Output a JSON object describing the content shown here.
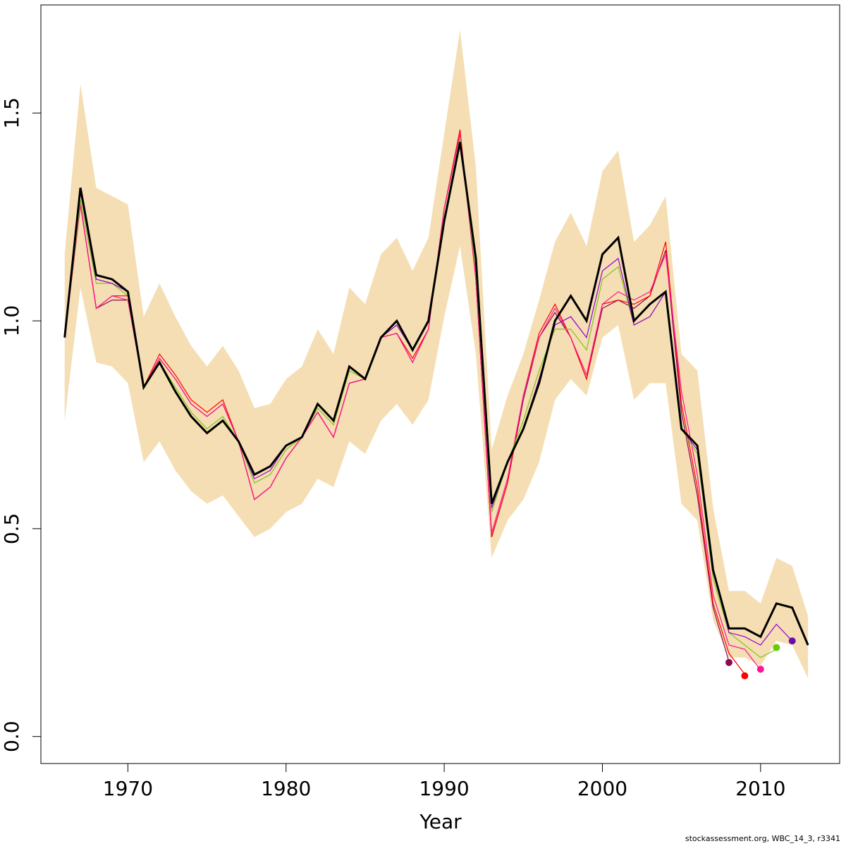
{
  "chart_data": {
    "type": "line",
    "title": "",
    "xlabel": "Year",
    "ylabel": "",
    "xlim": [
      1964.5,
      2015
    ],
    "ylim": [
      -0.065,
      1.76
    ],
    "x_ticks": [
      1970,
      1980,
      1990,
      2000,
      2010
    ],
    "y_ticks": [
      0.0,
      0.5,
      1.0,
      1.5
    ],
    "y_tick_labels": [
      "0.0",
      "0.5",
      "1.0",
      "1.5"
    ],
    "grid": false,
    "legend": "none",
    "colors": {
      "band": "#f5deb3",
      "main": "#000000",
      "retro_2012": "#9400d3",
      "retro_2011": "#7fc31c",
      "retro_2010": "#ff1493",
      "retro_2009": "#ff0000",
      "retro_2008": "#8b0a50"
    },
    "band": {
      "x": [
        1966,
        1967,
        1968,
        1969,
        1970,
        1971,
        1972,
        1973,
        1974,
        1975,
        1976,
        1977,
        1978,
        1979,
        1980,
        1981,
        1982,
        1983,
        1984,
        1985,
        1986,
        1987,
        1988,
        1989,
        1990,
        1991,
        1992,
        1993,
        1994,
        1995,
        1996,
        1997,
        1998,
        1999,
        2000,
        2001,
        2002,
        2003,
        2004,
        2005,
        2006,
        2007,
        2008,
        2009,
        2010,
        2011,
        2012,
        2013
      ],
      "upper": [
        1.16,
        1.57,
        1.32,
        1.3,
        1.28,
        1.01,
        1.09,
        1.01,
        0.94,
        0.89,
        0.94,
        0.88,
        0.79,
        0.8,
        0.86,
        0.89,
        0.98,
        0.92,
        1.08,
        1.04,
        1.16,
        1.2,
        1.12,
        1.2,
        1.45,
        1.7,
        1.37,
        0.69,
        0.82,
        0.92,
        1.05,
        1.19,
        1.26,
        1.18,
        1.36,
        1.41,
        1.19,
        1.23,
        1.3,
        0.92,
        0.88,
        0.55,
        0.35,
        0.35,
        0.32,
        0.43,
        0.41,
        0.29
      ],
      "lower": [
        0.76,
        1.08,
        0.9,
        0.89,
        0.85,
        0.66,
        0.71,
        0.64,
        0.59,
        0.56,
        0.58,
        0.53,
        0.48,
        0.5,
        0.54,
        0.56,
        0.62,
        0.6,
        0.71,
        0.68,
        0.76,
        0.8,
        0.75,
        0.81,
        1.01,
        1.18,
        0.92,
        0.43,
        0.52,
        0.57,
        0.66,
        0.81,
        0.86,
        0.82,
        0.96,
        0.99,
        0.81,
        0.85,
        0.85,
        0.56,
        0.52,
        0.28,
        0.19,
        0.19,
        0.17,
        0.23,
        0.22,
        0.14
      ]
    },
    "series": [
      {
        "name": "",
        "color": "#000000",
        "width": 3,
        "x": [
          1966,
          1967,
          1968,
          1969,
          1970,
          1971,
          1972,
          1973,
          1974,
          1975,
          1976,
          1977,
          1978,
          1979,
          1980,
          1981,
          1982,
          1983,
          1984,
          1985,
          1986,
          1987,
          1988,
          1989,
          1990,
          1991,
          1992,
          1993,
          1994,
          1995,
          1996,
          1997,
          1998,
          1999,
          2000,
          2001,
          2002,
          2003,
          2004,
          2005,
          2006,
          2007,
          2008,
          2009,
          2010,
          2011,
          2012,
          2013
        ],
        "y": [
          0.96,
          1.32,
          1.11,
          1.1,
          1.07,
          0.84,
          0.9,
          0.83,
          0.77,
          0.73,
          0.76,
          0.71,
          0.63,
          0.65,
          0.7,
          0.72,
          0.8,
          0.76,
          0.89,
          0.86,
          0.96,
          1.0,
          0.93,
          1.0,
          1.24,
          1.43,
          1.15,
          0.56,
          0.66,
          0.74,
          0.85,
          1.0,
          1.06,
          1.0,
          1.16,
          1.2,
          1.0,
          1.04,
          1.07,
          0.74,
          0.7,
          0.4,
          0.26,
          0.26,
          0.24,
          0.32,
          0.31,
          0.22
        ]
      },
      {
        "name": "",
        "color": "#9400d3",
        "width": 1.2,
        "x": [
          1966,
          1967,
          1968,
          1969,
          1970,
          1971,
          1972,
          1973,
          1974,
          1975,
          1976,
          1977,
          1978,
          1979,
          1980,
          1981,
          1982,
          1983,
          1984,
          1985,
          1986,
          1987,
          1988,
          1989,
          1990,
          1991,
          1992,
          1993,
          1994,
          1995,
          1996,
          1997,
          1998,
          1999,
          2000,
          2001,
          2002,
          2003,
          2004,
          2005,
          2006,
          2007,
          2008,
          2009,
          2010,
          2011,
          2012
        ],
        "y": [
          0.96,
          1.31,
          1.1,
          1.09,
          1.07,
          0.84,
          0.9,
          0.83,
          0.77,
          0.73,
          0.76,
          0.71,
          0.62,
          0.64,
          0.7,
          0.72,
          0.8,
          0.76,
          0.89,
          0.86,
          0.96,
          0.99,
          0.93,
          1.0,
          1.24,
          1.43,
          1.14,
          0.55,
          0.66,
          0.74,
          0.86,
          0.99,
          1.01,
          0.96,
          1.12,
          1.15,
          0.99,
          1.01,
          1.07,
          0.74,
          0.69,
          0.4,
          0.25,
          0.24,
          0.22,
          0.27,
          0.23
        ]
      },
      {
        "name": "",
        "color": "#7fc31c",
        "width": 1.2,
        "x": [
          1966,
          1967,
          1968,
          1969,
          1970,
          1971,
          1972,
          1973,
          1974,
          1975,
          1976,
          1977,
          1978,
          1979,
          1980,
          1981,
          1982,
          1983,
          1984,
          1985,
          1986,
          1987,
          1988,
          1989,
          1990,
          1991,
          1992,
          1993,
          1994,
          1995,
          1996,
          1997,
          1998,
          1999,
          2000,
          2001,
          2002,
          2003,
          2004,
          2005,
          2006,
          2007,
          2008,
          2009,
          2010,
          2011
        ],
        "y": [
          0.96,
          1.29,
          1.09,
          1.09,
          1.06,
          0.84,
          0.9,
          0.84,
          0.78,
          0.74,
          0.77,
          0.71,
          0.61,
          0.63,
          0.69,
          0.72,
          0.79,
          0.75,
          0.88,
          0.86,
          0.96,
          0.99,
          0.93,
          1.0,
          1.25,
          1.44,
          1.12,
          0.54,
          0.66,
          0.76,
          0.88,
          0.98,
          0.98,
          0.93,
          1.1,
          1.13,
          0.99,
          1.01,
          1.07,
          0.74,
          0.68,
          0.38,
          0.25,
          0.22,
          0.19,
          0.21
        ]
      },
      {
        "name": "",
        "color": "#ff1493",
        "width": 1.2,
        "x": [
          1966,
          1967,
          1968,
          1969,
          1970,
          1971,
          1972,
          1973,
          1974,
          1975,
          1976,
          1977,
          1978,
          1979,
          1980,
          1981,
          1982,
          1983,
          1984,
          1985,
          1986,
          1987,
          1988,
          1989,
          1990,
          1991,
          1992,
          1993,
          1994,
          1995,
          1996,
          1997,
          1998,
          1999,
          2000,
          2001,
          2002,
          2003,
          2004,
          2005,
          2006,
          2007,
          2008,
          2009,
          2010
        ],
        "y": [
          0.96,
          1.28,
          1.03,
          1.06,
          1.05,
          0.84,
          0.91,
          0.86,
          0.8,
          0.77,
          0.8,
          0.71,
          0.57,
          0.6,
          0.67,
          0.72,
          0.78,
          0.72,
          0.85,
          0.86,
          0.96,
          0.97,
          0.9,
          0.98,
          1.27,
          1.45,
          1.1,
          0.49,
          0.62,
          0.82,
          0.96,
          1.03,
          0.96,
          0.87,
          1.04,
          1.07,
          1.05,
          1.07,
          1.16,
          0.83,
          0.63,
          0.34,
          0.22,
          0.21,
          0.16
        ]
      },
      {
        "name": "",
        "color": "#ff0000",
        "width": 1.2,
        "x": [
          1966,
          1967,
          1968,
          1969,
          1970,
          1971,
          1972,
          1973,
          1974,
          1975,
          1976,
          1977,
          1978,
          1979,
          1980,
          1981,
          1982,
          1983,
          1984,
          1985,
          1986,
          1987,
          1988,
          1989,
          1990,
          1991,
          1992,
          1993,
          1994,
          1995,
          1996,
          1997,
          1998,
          1999,
          2000,
          2001,
          2002,
          2003,
          2004,
          2005,
          2006,
          2007,
          2008,
          2009
        ],
        "y": [
          0.96,
          1.28,
          1.03,
          1.06,
          1.06,
          0.84,
          0.92,
          0.87,
          0.81,
          0.78,
          0.81,
          0.71,
          0.57,
          0.6,
          0.67,
          0.72,
          0.78,
          0.72,
          0.85,
          0.86,
          0.96,
          0.97,
          0.91,
          0.98,
          1.27,
          1.46,
          1.1,
          0.48,
          0.61,
          0.82,
          0.97,
          1.04,
          0.96,
          0.86,
          1.04,
          1.05,
          1.04,
          1.06,
          1.19,
          0.8,
          0.6,
          0.32,
          0.2,
          0.15
        ]
      },
      {
        "name": "",
        "color": "#8b0a50",
        "width": 1.2,
        "x": [
          1966,
          1967,
          1968,
          1969,
          1970,
          1971,
          1972,
          1973,
          1974,
          1975,
          1976,
          1977,
          1978,
          1979,
          1980,
          1981,
          1982,
          1983,
          1984,
          1985,
          1986,
          1987,
          1988,
          1989,
          1990,
          1991,
          1992,
          1993,
          1994,
          1995,
          1996,
          1997,
          1998,
          1999,
          2000,
          2001,
          2002,
          2003,
          2004,
          2005,
          2006,
          2007,
          2008
        ],
        "y": [
          0.96,
          1.28,
          1.03,
          1.05,
          1.05,
          0.84,
          0.91,
          0.86,
          0.8,
          0.77,
          0.8,
          0.71,
          0.57,
          0.6,
          0.67,
          0.72,
          0.78,
          0.72,
          0.85,
          0.86,
          0.96,
          0.97,
          0.9,
          0.98,
          1.27,
          1.45,
          1.1,
          0.48,
          0.61,
          0.81,
          0.96,
          1.02,
          0.96,
          0.86,
          1.03,
          1.05,
          1.03,
          1.06,
          1.17,
          0.78,
          0.58,
          0.31,
          0.18
        ]
      }
    ],
    "end_points": [
      {
        "x": 2008,
        "y": 0.178,
        "color": "#8b0a50"
      },
      {
        "x": 2009,
        "y": 0.146,
        "color": "#ff0000"
      },
      {
        "x": 2010,
        "y": 0.162,
        "color": "#ff1493"
      },
      {
        "x": 2011,
        "y": 0.214,
        "color": "#66cc00"
      },
      {
        "x": 2012,
        "y": 0.23,
        "color": "#6a0dad"
      }
    ]
  },
  "footer_text": "stockassessment.org, WBC_14_3, r3341"
}
